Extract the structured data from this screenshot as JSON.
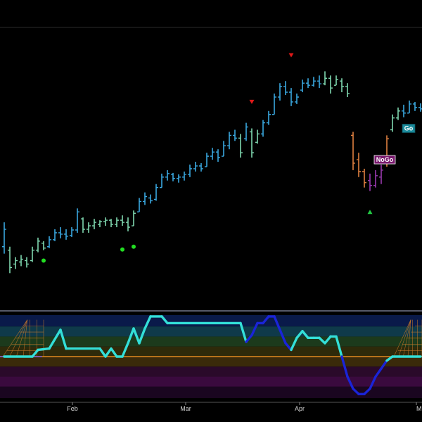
{
  "chart_data": {
    "type": "bar",
    "title": "",
    "xlabel": "",
    "ylabel": "",
    "x_tick_labels": [
      "Feb",
      "Mar",
      "Apr",
      "M"
    ],
    "grid": false,
    "colors": {
      "go_strong": "#3aa8e0",
      "go_weak": "#7fd8b0",
      "nogo_weak": "#e08040",
      "nogo_strong": "#9a3ab0",
      "oscillator_go": "#33dfd8",
      "oscillator_nogo": "#1a24d8",
      "zero_line": "#e08a20",
      "go_dot": "#22dd22",
      "nogo_triangle": "#e01818",
      "go_triangle": "#22cc44"
    },
    "price_bars": [
      {
        "t": 0,
        "high": 4.55,
        "low": 4.1,
        "open": 4.2,
        "close": 4.45,
        "state": "go_strong"
      },
      {
        "t": 1,
        "high": 4.2,
        "low": 3.82,
        "open": 4.15,
        "close": 3.9,
        "state": "go_weak"
      },
      {
        "t": 2,
        "high": 4.05,
        "low": 3.88,
        "open": 3.95,
        "close": 4.0,
        "state": "go_weak"
      },
      {
        "t": 3,
        "high": 4.08,
        "low": 3.92,
        "open": 3.98,
        "close": 4.02,
        "state": "go_weak"
      },
      {
        "t": 4,
        "high": 4.05,
        "low": 3.9,
        "open": 4.0,
        "close": 3.95,
        "state": "go_weak"
      },
      {
        "t": 5,
        "high": 4.2,
        "low": 3.98,
        "open": 4.0,
        "close": 4.15,
        "state": "go_weak"
      },
      {
        "t": 6,
        "high": 4.33,
        "low": 4.12,
        "open": 4.15,
        "close": 4.28,
        "state": "go_weak"
      },
      {
        "t": 7,
        "high": 4.28,
        "low": 4.15,
        "open": 4.25,
        "close": 4.18,
        "state": "go_weak"
      },
      {
        "t": 8,
        "high": 4.35,
        "low": 4.18,
        "open": 4.2,
        "close": 4.3,
        "state": "go_strong"
      },
      {
        "t": 9,
        "high": 4.45,
        "low": 4.28,
        "open": 4.3,
        "close": 4.4,
        "state": "go_strong"
      },
      {
        "t": 10,
        "high": 4.48,
        "low": 4.32,
        "open": 4.4,
        "close": 4.38,
        "state": "go_strong"
      },
      {
        "t": 11,
        "high": 4.45,
        "low": 4.3,
        "open": 4.38,
        "close": 4.35,
        "state": "go_strong"
      },
      {
        "t": 12,
        "high": 4.48,
        "low": 4.34,
        "open": 4.36,
        "close": 4.44,
        "state": "go_strong"
      },
      {
        "t": 13,
        "high": 4.75,
        "low": 4.4,
        "open": 4.44,
        "close": 4.7,
        "state": "go_strong"
      },
      {
        "t": 14,
        "high": 4.62,
        "low": 4.4,
        "open": 4.6,
        "close": 4.45,
        "state": "go_weak"
      },
      {
        "t": 15,
        "high": 4.55,
        "low": 4.4,
        "open": 4.45,
        "close": 4.5,
        "state": "go_weak"
      },
      {
        "t": 16,
        "high": 4.6,
        "low": 4.45,
        "open": 4.5,
        "close": 4.55,
        "state": "go_weak"
      },
      {
        "t": 17,
        "high": 4.58,
        "low": 4.48,
        "open": 4.52,
        "close": 4.56,
        "state": "go_weak"
      },
      {
        "t": 18,
        "high": 4.62,
        "low": 4.5,
        "open": 4.56,
        "close": 4.58,
        "state": "go_weak"
      },
      {
        "t": 19,
        "high": 4.6,
        "low": 4.48,
        "open": 4.58,
        "close": 4.52,
        "state": "go_weak"
      },
      {
        "t": 20,
        "high": 4.62,
        "low": 4.48,
        "open": 4.52,
        "close": 4.58,
        "state": "go_weak"
      },
      {
        "t": 21,
        "high": 4.65,
        "low": 4.5,
        "open": 4.58,
        "close": 4.55,
        "state": "go_weak"
      },
      {
        "t": 22,
        "high": 4.62,
        "low": 4.42,
        "open": 4.55,
        "close": 4.48,
        "state": "go_weak"
      },
      {
        "t": 23,
        "high": 4.72,
        "low": 4.5,
        "open": 4.5,
        "close": 4.68,
        "state": "go_weak"
      },
      {
        "t": 24,
        "high": 4.9,
        "low": 4.7,
        "open": 4.7,
        "close": 4.85,
        "state": "go_strong"
      },
      {
        "t": 25,
        "high": 4.98,
        "low": 4.8,
        "open": 4.85,
        "close": 4.92,
        "state": "go_strong"
      },
      {
        "t": 26,
        "high": 4.95,
        "low": 4.82,
        "open": 4.9,
        "close": 4.86,
        "state": "go_strong"
      },
      {
        "t": 27,
        "high": 5.1,
        "low": 4.86,
        "open": 4.88,
        "close": 5.05,
        "state": "go_strong"
      },
      {
        "t": 28,
        "high": 5.25,
        "low": 5.05,
        "open": 5.05,
        "close": 5.2,
        "state": "go_strong"
      },
      {
        "t": 29,
        "high": 5.3,
        "low": 5.15,
        "open": 5.2,
        "close": 5.25,
        "state": "go_strong"
      },
      {
        "t": 30,
        "high": 5.26,
        "low": 5.14,
        "open": 5.24,
        "close": 5.18,
        "state": "go_strong"
      },
      {
        "t": 31,
        "high": 5.24,
        "low": 5.12,
        "open": 5.18,
        "close": 5.2,
        "state": "go_strong"
      },
      {
        "t": 32,
        "high": 5.28,
        "low": 5.15,
        "open": 5.2,
        "close": 5.24,
        "state": "go_strong"
      },
      {
        "t": 33,
        "high": 5.38,
        "low": 5.2,
        "open": 5.24,
        "close": 5.32,
        "state": "go_strong"
      },
      {
        "t": 34,
        "high": 5.42,
        "low": 5.28,
        "open": 5.32,
        "close": 5.36,
        "state": "go_strong"
      },
      {
        "t": 35,
        "high": 5.4,
        "low": 5.28,
        "open": 5.36,
        "close": 5.32,
        "state": "go_strong"
      },
      {
        "t": 36,
        "high": 5.55,
        "low": 5.35,
        "open": 5.35,
        "close": 5.5,
        "state": "go_strong"
      },
      {
        "t": 37,
        "high": 5.62,
        "low": 5.45,
        "open": 5.5,
        "close": 5.56,
        "state": "go_strong"
      },
      {
        "t": 38,
        "high": 5.6,
        "low": 5.42,
        "open": 5.56,
        "close": 5.48,
        "state": "go_strong"
      },
      {
        "t": 39,
        "high": 5.72,
        "low": 5.5,
        "open": 5.5,
        "close": 5.65,
        "state": "go_strong"
      },
      {
        "t": 40,
        "high": 5.85,
        "low": 5.6,
        "open": 5.65,
        "close": 5.8,
        "state": "go_strong"
      },
      {
        "t": 41,
        "high": 5.88,
        "low": 5.72,
        "open": 5.8,
        "close": 5.76,
        "state": "go_strong"
      },
      {
        "t": 42,
        "high": 5.82,
        "low": 5.48,
        "open": 5.76,
        "close": 5.55,
        "state": "go_weak"
      },
      {
        "t": 43,
        "high": 5.98,
        "low": 5.72,
        "open": 5.75,
        "close": 5.92,
        "state": "go_strong"
      },
      {
        "t": 44,
        "high": 5.9,
        "low": 5.48,
        "open": 5.85,
        "close": 5.55,
        "state": "go_weak"
      },
      {
        "t": 45,
        "high": 5.88,
        "low": 5.68,
        "open": 5.7,
        "close": 5.82,
        "state": "go_weak"
      },
      {
        "t": 46,
        "high": 6.02,
        "low": 5.78,
        "open": 5.82,
        "close": 5.98,
        "state": "go_strong"
      },
      {
        "t": 47,
        "high": 6.15,
        "low": 5.95,
        "open": 5.98,
        "close": 6.1,
        "state": "go_strong"
      },
      {
        "t": 48,
        "high": 6.4,
        "low": 6.1,
        "open": 6.1,
        "close": 6.35,
        "state": "go_strong"
      },
      {
        "t": 49,
        "high": 6.55,
        "low": 6.3,
        "open": 6.35,
        "close": 6.5,
        "state": "go_strong"
      },
      {
        "t": 50,
        "high": 6.58,
        "low": 6.38,
        "open": 6.5,
        "close": 6.42,
        "state": "go_strong"
      },
      {
        "t": 51,
        "high": 6.48,
        "low": 6.22,
        "open": 6.42,
        "close": 6.28,
        "state": "go_strong"
      },
      {
        "t": 52,
        "high": 6.4,
        "low": 6.25,
        "open": 6.28,
        "close": 6.35,
        "state": "go_strong"
      },
      {
        "t": 53,
        "high": 6.6,
        "low": 6.42,
        "open": 6.45,
        "close": 6.55,
        "state": "go_strong"
      },
      {
        "t": 54,
        "high": 6.62,
        "low": 6.48,
        "open": 6.55,
        "close": 6.52,
        "state": "go_strong"
      },
      {
        "t": 55,
        "high": 6.64,
        "low": 6.5,
        "open": 6.52,
        "close": 6.58,
        "state": "go_strong"
      },
      {
        "t": 56,
        "high": 6.66,
        "low": 6.48,
        "open": 6.58,
        "close": 6.54,
        "state": "go_strong"
      },
      {
        "t": 57,
        "high": 6.72,
        "low": 6.52,
        "open": 6.54,
        "close": 6.62,
        "state": "go_weak"
      },
      {
        "t": 58,
        "high": 6.66,
        "low": 6.4,
        "open": 6.62,
        "close": 6.48,
        "state": "go_weak"
      },
      {
        "t": 59,
        "high": 6.66,
        "low": 6.52,
        "open": 6.52,
        "close": 6.6,
        "state": "go_weak"
      },
      {
        "t": 60,
        "high": 6.62,
        "low": 6.42,
        "open": 6.58,
        "close": 6.5,
        "state": "go_weak"
      },
      {
        "t": 61,
        "high": 6.55,
        "low": 6.35,
        "open": 6.5,
        "close": 6.4,
        "state": "go_weak"
      },
      {
        "t": 62,
        "high": 5.85,
        "low": 5.3,
        "open": 5.8,
        "close": 5.4,
        "state": "nogo_weak"
      },
      {
        "t": 63,
        "high": 5.55,
        "low": 5.2,
        "open": 5.45,
        "close": 5.28,
        "state": "nogo_weak"
      },
      {
        "t": 64,
        "high": 5.32,
        "low": 5.05,
        "open": 5.28,
        "close": 5.12,
        "state": "nogo_weak"
      },
      {
        "t": 65,
        "high": 5.25,
        "low": 5.0,
        "open": 5.15,
        "close": 5.08,
        "state": "nogo_strong"
      },
      {
        "t": 66,
        "high": 5.3,
        "low": 5.05,
        "open": 5.08,
        "close": 5.22,
        "state": "nogo_strong"
      },
      {
        "t": 67,
        "high": 5.38,
        "low": 5.1,
        "open": 5.2,
        "close": 5.3,
        "state": "nogo_strong"
      },
      {
        "t": 68,
        "high": 5.8,
        "low": 5.35,
        "open": 5.4,
        "close": 5.75,
        "state": "nogo_weak"
      },
      {
        "t": 69,
        "high": 6.1,
        "low": 5.85,
        "open": 5.88,
        "close": 6.05,
        "state": "go_weak"
      },
      {
        "t": 70,
        "high": 6.2,
        "low": 6.02,
        "open": 6.05,
        "close": 6.15,
        "state": "go_weak"
      },
      {
        "t": 71,
        "high": 6.24,
        "low": 6.06,
        "open": 6.15,
        "close": 6.12,
        "state": "go_strong"
      },
      {
        "t": 72,
        "high": 6.3,
        "low": 6.12,
        "open": 6.12,
        "close": 6.25,
        "state": "go_strong"
      },
      {
        "t": 73,
        "high": 6.28,
        "low": 6.15,
        "open": 6.25,
        "close": 6.2,
        "state": "go_strong"
      },
      {
        "t": 74,
        "high": 6.26,
        "low": 6.14,
        "open": 6.2,
        "close": 6.18,
        "state": "go_strong"
      }
    ],
    "markers": [
      {
        "type": "go_dot",
        "t": 7,
        "price": 4.0
      },
      {
        "type": "go_dot",
        "t": 21,
        "price": 4.16
      },
      {
        "type": "go_dot",
        "t": 23,
        "price": 4.2
      },
      {
        "type": "nogo_triangle",
        "t": 44,
        "price": 6.28
      },
      {
        "type": "nogo_triangle",
        "t": 51,
        "price": 6.95
      },
      {
        "type": "go_triangle",
        "t": 65,
        "price": 4.7
      }
    ],
    "tags": [
      {
        "label": "NoGo",
        "t": 66,
        "price": 5.45,
        "fill": "#7a1a6e",
        "border": "#ffffff",
        "text_color": "#ffffff"
      },
      {
        "label": "Go",
        "t": 71,
        "price": 5.9,
        "fill": "#1a8a9a",
        "border": "#0e4f5a",
        "text_color": "#ffffff"
      }
    ],
    "price_range": [
      3.5,
      7.3
    ],
    "oscillator_range": [
      -6.2,
      6.2
    ],
    "oscillator_zero": 0,
    "oscillator": [
      {
        "t": 0,
        "v": 0.0,
        "state": "go"
      },
      {
        "t": 5,
        "v": 0.0,
        "state": "go"
      },
      {
        "t": 6,
        "v": 1.0,
        "state": "go"
      },
      {
        "t": 8,
        "v": 1.2,
        "state": "go"
      },
      {
        "t": 10,
        "v": 4.0,
        "state": "go"
      },
      {
        "t": 11,
        "v": 1.2,
        "state": "go"
      },
      {
        "t": 17,
        "v": 1.2,
        "state": "go"
      },
      {
        "t": 18,
        "v": 0.0,
        "state": "go"
      },
      {
        "t": 19,
        "v": 1.2,
        "state": "go"
      },
      {
        "t": 20,
        "v": 0.0,
        "state": "go"
      },
      {
        "t": 21,
        "v": 0.0,
        "state": "go"
      },
      {
        "t": 22,
        "v": 2.0,
        "state": "go"
      },
      {
        "t": 23,
        "v": 4.2,
        "state": "go"
      },
      {
        "t": 24,
        "v": 2.0,
        "state": "go"
      },
      {
        "t": 25,
        "v": 4.2,
        "state": "go"
      },
      {
        "t": 26,
        "v": 6.0,
        "state": "go"
      },
      {
        "t": 28,
        "v": 6.0,
        "state": "go"
      },
      {
        "t": 29,
        "v": 5.0,
        "state": "go"
      },
      {
        "t": 42,
        "v": 5.0,
        "state": "go"
      },
      {
        "t": 43,
        "v": 2.2,
        "state": "go"
      },
      {
        "t": 44,
        "v": 3.2,
        "state": "nogo"
      },
      {
        "t": 45,
        "v": 5.0,
        "state": "nogo"
      },
      {
        "t": 46,
        "v": 5.0,
        "state": "nogo"
      },
      {
        "t": 47,
        "v": 6.0,
        "state": "nogo"
      },
      {
        "t": 48,
        "v": 6.0,
        "state": "nogo"
      },
      {
        "t": 49,
        "v": 4.0,
        "state": "nogo"
      },
      {
        "t": 50,
        "v": 2.0,
        "state": "nogo"
      },
      {
        "t": 51,
        "v": 1.0,
        "state": "nogo"
      },
      {
        "t": 52,
        "v": 2.8,
        "state": "go"
      },
      {
        "t": 53,
        "v": 3.8,
        "state": "go"
      },
      {
        "t": 54,
        "v": 2.8,
        "state": "go"
      },
      {
        "t": 55,
        "v": 2.8,
        "state": "go"
      },
      {
        "t": 56,
        "v": 2.8,
        "state": "go"
      },
      {
        "t": 57,
        "v": 2.0,
        "state": "go"
      },
      {
        "t": 58,
        "v": 3.0,
        "state": "go"
      },
      {
        "t": 59,
        "v": 3.0,
        "state": "go"
      },
      {
        "t": 60,
        "v": 0.0,
        "state": "go"
      },
      {
        "t": 61,
        "v": -3.0,
        "state": "nogo"
      },
      {
        "t": 62,
        "v": -4.8,
        "state": "nogo"
      },
      {
        "t": 63,
        "v": -5.6,
        "state": "nogo"
      },
      {
        "t": 64,
        "v": -5.6,
        "state": "nogo"
      },
      {
        "t": 65,
        "v": -4.8,
        "state": "nogo"
      },
      {
        "t": 66,
        "v": -3.0,
        "state": "nogo"
      },
      {
        "t": 67,
        "v": -1.8,
        "state": "nogo"
      },
      {
        "t": 68,
        "v": -0.6,
        "state": "nogo"
      },
      {
        "t": 69,
        "v": 0.0,
        "state": "go"
      },
      {
        "t": 74,
        "v": 0.0,
        "state": "go"
      }
    ],
    "oscillator_bands": [
      {
        "from": 4.5,
        "to": 6.2,
        "color": "#0a1a4a"
      },
      {
        "from": 3.0,
        "to": 4.5,
        "color": "#0f3a4a"
      },
      {
        "from": 1.5,
        "to": 3.0,
        "color": "#1c3a1c"
      },
      {
        "from": 0.0,
        "to": 1.5,
        "color": "#2e2a0a"
      },
      {
        "from": -1.5,
        "to": 0.0,
        "color": "#3a2a0a"
      },
      {
        "from": -3.0,
        "to": -1.5,
        "color": "#2a0a2a"
      },
      {
        "from": -4.5,
        "to": -3.0,
        "color": "#3a0a3e"
      },
      {
        "from": -6.2,
        "to": -4.5,
        "color": "#1a0620"
      }
    ]
  }
}
